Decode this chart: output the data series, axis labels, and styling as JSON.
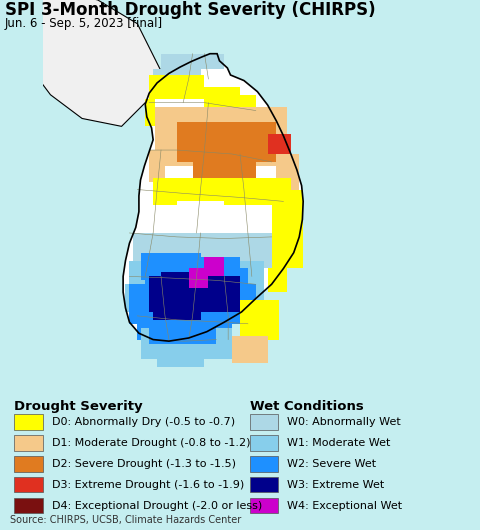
{
  "title": "SPI 3-Month Drought Severity (CHIRPS)",
  "subtitle": "Jun. 6 - Sep. 5, 2023 [final]",
  "background_color": "#c5eef0",
  "legend_bg_color": "#ddf5f5",
  "source_text": "Source: CHIRPS, UCSB, Climate Hazards Center",
  "drought_legend": [
    {
      "code": "D0",
      "label": "D0: Abnormally Dry (-0.5 to -0.7)",
      "color": "#ffff00"
    },
    {
      "code": "D1",
      "label": "D1: Moderate Drought (-0.8 to -1.2)",
      "color": "#f5c98a"
    },
    {
      "code": "D2",
      "label": "D2: Severe Drought (-1.3 to -1.5)",
      "color": "#e07b20"
    },
    {
      "code": "D3",
      "label": "D3: Extreme Drought (-1.6 to -1.9)",
      "color": "#e03020"
    },
    {
      "code": "D4",
      "label": "D4: Exceptional Drought (-2.0 or less)",
      "color": "#7a1010"
    }
  ],
  "wet_legend": [
    {
      "code": "W0",
      "label": "W0: Abnormally Wet",
      "color": "#add8e6"
    },
    {
      "code": "W1",
      "label": "W1: Moderate Wet",
      "color": "#87ceeb"
    },
    {
      "code": "W2",
      "label": "W2: Severe Wet",
      "color": "#1e90ff"
    },
    {
      "code": "W3",
      "label": "W3: Extreme Wet",
      "color": "#00008b"
    },
    {
      "code": "W4",
      "label": "W4: Exceptional Wet",
      "color": "#cc00cc"
    }
  ],
  "title_fontsize": 12,
  "subtitle_fontsize": 8.5,
  "legend_title_fontsize": 9.5,
  "legend_item_fontsize": 8.0,
  "source_fontsize": 7.0,
  "fig_width": 4.8,
  "fig_height": 5.3,
  "dpi": 100
}
